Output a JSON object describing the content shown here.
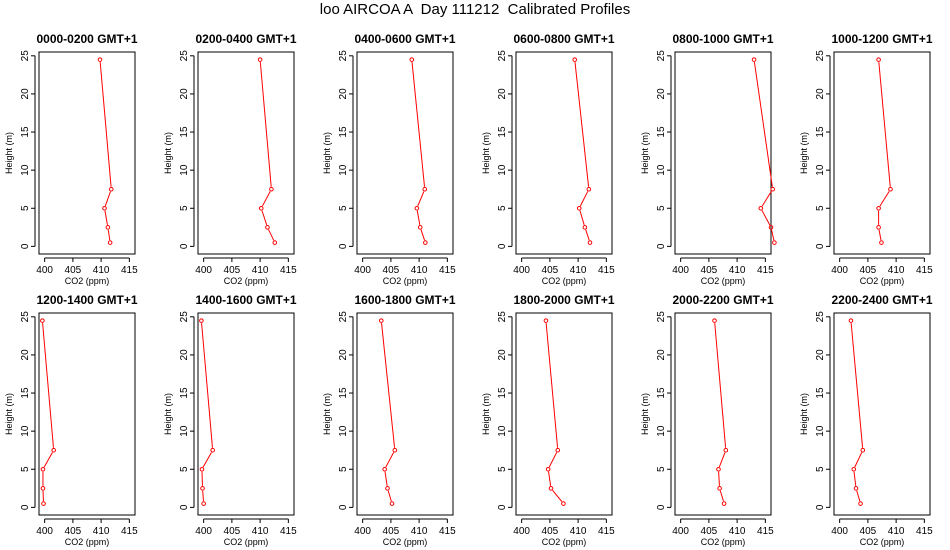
{
  "figure": {
    "title": "loo AIRCOA A  Day 111212  Calibrated Profiles"
  },
  "colors": {
    "series": "#ff0000",
    "axes": "#000000"
  },
  "chart_data": [
    {
      "type": "line",
      "title": "0000-0200 GMT+1",
      "xlabel": "CO2 (ppm)",
      "ylabel": "Height (m)",
      "xlim": [
        399,
        416
      ],
      "ylim": [
        -1,
        25.5
      ],
      "x_ticks": [
        400,
        405,
        410,
        415
      ],
      "y_ticks": [
        0,
        5,
        10,
        15,
        20,
        25
      ],
      "grid": false,
      "series": [
        {
          "x": [
            411.6,
            411.2,
            410.6,
            411.8,
            409.8
          ],
          "y": [
            0.5,
            2.5,
            5,
            7.5,
            24.5
          ]
        }
      ]
    },
    {
      "type": "line",
      "title": "0200-0400 GMT+1",
      "xlabel": "CO2 (ppm)",
      "ylabel": "Height (m)",
      "xlim": [
        399,
        416
      ],
      "ylim": [
        -1,
        25.5
      ],
      "x_ticks": [
        400,
        405,
        410,
        415
      ],
      "y_ticks": [
        0,
        5,
        10,
        15,
        20,
        25
      ],
      "grid": false,
      "series": [
        {
          "x": [
            412.6,
            411.3,
            410.2,
            412.0,
            410.0
          ],
          "y": [
            0.5,
            2.5,
            5,
            7.5,
            24.5
          ]
        }
      ]
    },
    {
      "type": "line",
      "title": "0400-0600 GMT+1",
      "xlabel": "CO2 (ppm)",
      "ylabel": "Height (m)",
      "xlim": [
        399,
        416
      ],
      "ylim": [
        -1,
        25.5
      ],
      "x_ticks": [
        400,
        405,
        410,
        415
      ],
      "y_ticks": [
        0,
        5,
        10,
        15,
        20,
        25
      ],
      "grid": false,
      "series": [
        {
          "x": [
            411.1,
            410.2,
            409.6,
            411.0,
            408.7
          ],
          "y": [
            0.5,
            2.5,
            5,
            7.5,
            24.5
          ]
        }
      ]
    },
    {
      "type": "line",
      "title": "0600-0800 GMT+1",
      "xlabel": "CO2 (ppm)",
      "ylabel": "Height (m)",
      "xlim": [
        399,
        416
      ],
      "ylim": [
        -1,
        25.5
      ],
      "x_ticks": [
        400,
        405,
        410,
        415
      ],
      "y_ticks": [
        0,
        5,
        10,
        15,
        20,
        25
      ],
      "grid": false,
      "series": [
        {
          "x": [
            412.1,
            411.2,
            410.2,
            411.9,
            409.4
          ],
          "y": [
            0.5,
            2.5,
            5,
            7.5,
            24.5
          ]
        }
      ]
    },
    {
      "type": "line",
      "title": "0800-1000 GMT+1",
      "xlabel": "CO2 (ppm)",
      "ylabel": "Height (m)",
      "xlim": [
        399,
        416
      ],
      "ylim": [
        -1,
        25.5
      ],
      "x_ticks": [
        400,
        405,
        410,
        415
      ],
      "y_ticks": [
        0,
        5,
        10,
        15,
        20,
        25
      ],
      "grid": false,
      "series": [
        {
          "x": [
            416.6,
            416.0,
            414.2,
            416.3,
            413.0
          ],
          "y": [
            0.5,
            2.5,
            5,
            7.5,
            24.5
          ]
        }
      ]
    },
    {
      "type": "line",
      "title": "1000-1200 GMT+1",
      "xlabel": "CO2 (ppm)",
      "ylabel": "Height (m)",
      "xlim": [
        399,
        416
      ],
      "ylim": [
        -1,
        25.5
      ],
      "x_ticks": [
        400,
        405,
        410,
        415
      ],
      "y_ticks": [
        0,
        5,
        10,
        15,
        20,
        25
      ],
      "grid": false,
      "series": [
        {
          "x": [
            407.4,
            406.9,
            406.9,
            409.0,
            406.9
          ],
          "y": [
            0.5,
            2.5,
            5,
            7.5,
            24.5
          ]
        }
      ]
    },
    {
      "type": "line",
      "title": "1200-1400 GMT+1",
      "xlabel": "CO2 (ppm)",
      "ylabel": "Height (m)",
      "xlim": [
        399,
        416
      ],
      "ylim": [
        -1,
        25.5
      ],
      "x_ticks": [
        400,
        405,
        410,
        415
      ],
      "y_ticks": [
        0,
        5,
        10,
        15,
        20,
        25
      ],
      "grid": false,
      "series": [
        {
          "x": [
            399.8,
            399.7,
            399.7,
            401.6,
            399.6
          ],
          "y": [
            0.5,
            2.5,
            5,
            7.5,
            24.5
          ]
        }
      ]
    },
    {
      "type": "line",
      "title": "1400-1600 GMT+1",
      "xlabel": "CO2 (ppm)",
      "ylabel": "Height (m)",
      "xlim": [
        399,
        416
      ],
      "ylim": [
        -1,
        25.5
      ],
      "x_ticks": [
        400,
        405,
        410,
        415
      ],
      "y_ticks": [
        0,
        5,
        10,
        15,
        20,
        25
      ],
      "grid": false,
      "series": [
        {
          "x": [
            400.0,
            399.8,
            399.7,
            401.6,
            399.6
          ],
          "y": [
            0.5,
            2.5,
            5,
            7.5,
            24.5
          ]
        }
      ]
    },
    {
      "type": "line",
      "title": "1600-1800 GMT+1",
      "xlabel": "CO2 (ppm)",
      "ylabel": "Height (m)",
      "xlim": [
        399,
        416
      ],
      "ylim": [
        -1,
        25.5
      ],
      "x_ticks": [
        400,
        405,
        410,
        415
      ],
      "y_ticks": [
        0,
        5,
        10,
        15,
        20,
        25
      ],
      "grid": false,
      "series": [
        {
          "x": [
            405.2,
            404.4,
            403.9,
            405.7,
            403.3
          ],
          "y": [
            0.5,
            2.5,
            5,
            7.5,
            24.5
          ]
        }
      ]
    },
    {
      "type": "line",
      "title": "1800-2000 GMT+1",
      "xlabel": "CO2 (ppm)",
      "ylabel": "Height (m)",
      "xlim": [
        399,
        416
      ],
      "ylim": [
        -1,
        25.5
      ],
      "x_ticks": [
        400,
        405,
        410,
        415
      ],
      "y_ticks": [
        0,
        5,
        10,
        15,
        20,
        25
      ],
      "grid": false,
      "series": [
        {
          "x": [
            407.4,
            405.2,
            404.7,
            406.4,
            404.3
          ],
          "y": [
            0.5,
            2.5,
            5,
            7.5,
            24.5
          ]
        }
      ]
    },
    {
      "type": "line",
      "title": "2000-2200 GMT+1",
      "xlabel": "CO2 (ppm)",
      "ylabel": "Height (m)",
      "xlim": [
        399,
        416
      ],
      "ylim": [
        -1,
        25.5
      ],
      "x_ticks": [
        400,
        405,
        410,
        415
      ],
      "y_ticks": [
        0,
        5,
        10,
        15,
        20,
        25
      ],
      "grid": false,
      "series": [
        {
          "x": [
            407.7,
            406.9,
            406.7,
            408.0,
            406.0
          ],
          "y": [
            0.5,
            2.5,
            5,
            7.5,
            24.5
          ]
        }
      ]
    },
    {
      "type": "line",
      "title": "2200-2400 GMT+1",
      "xlabel": "CO2 (ppm)",
      "ylabel": "Height (m)",
      "xlim": [
        399,
        416
      ],
      "ylim": [
        -1,
        25.5
      ],
      "x_ticks": [
        400,
        405,
        410,
        415
      ],
      "y_ticks": [
        0,
        5,
        10,
        15,
        20,
        25
      ],
      "grid": false,
      "series": [
        {
          "x": [
            403.7,
            402.9,
            402.5,
            404.1,
            402.0
          ],
          "y": [
            0.5,
            2.5,
            5,
            7.5,
            24.5
          ]
        }
      ]
    }
  ]
}
